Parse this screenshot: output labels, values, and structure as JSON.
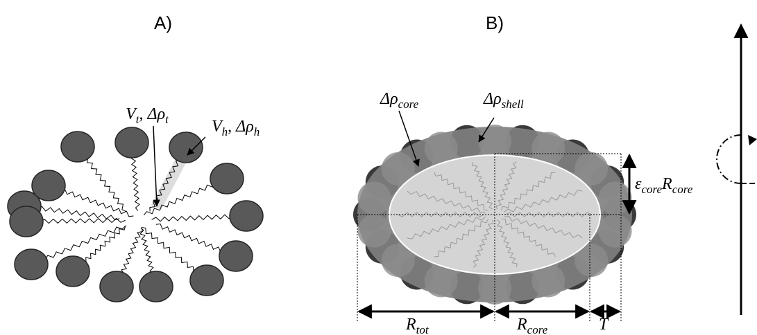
{
  "panel_a": {
    "label": "A)",
    "annotations": [
      {
        "parts": [
          "V",
          "t",
          ", Δρ",
          "t"
        ]
      },
      {
        "parts": [
          "V",
          "h",
          ", Δρ",
          "h"
        ]
      }
    ]
  },
  "panel_b": {
    "label": "B)",
    "annotations": [
      {
        "parts": [
          "Δρ",
          "core"
        ]
      },
      {
        "parts": [
          "Δρ",
          "shell"
        ]
      },
      {
        "parts": [
          "ε",
          "core",
          "R",
          "core"
        ]
      },
      {
        "parts": [
          "R",
          "tot"
        ]
      },
      {
        "parts": [
          "R",
          "core"
        ]
      },
      {
        "parts": [
          "T"
        ]
      }
    ]
  }
}
